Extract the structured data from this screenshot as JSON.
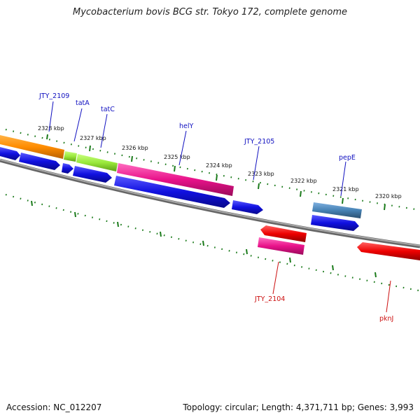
{
  "title": "Mycobacterium bovis BCG str. Tokyo 172, complete genome",
  "footer": {
    "accession": "Accession: NC_012207",
    "summary": "Topology: circular; Length: 4,371,711 bp; Genes: 3,993"
  },
  "colors": {
    "backbone": "#808080",
    "tick": "#1a7a1a",
    "forward_label": "#1010c0",
    "reverse_label": "#cc1010",
    "blue_gene": "#1010e0",
    "orange_gene": "#ff8c00",
    "green_gene": "#99e83a",
    "pink_gene": "#e8128a",
    "steel_gene": "#4682b4",
    "red_gene": "#ee0000"
  },
  "scale_ticks": [
    {
      "label": "2328 kbp"
    },
    {
      "label": "2327 kbp"
    },
    {
      "label": "2326 kbp"
    },
    {
      "label": "2325 kbp"
    },
    {
      "label": "2324 kbp"
    },
    {
      "label": "2323 kbp"
    },
    {
      "label": "2322 kbp"
    },
    {
      "label": "2321 kbp"
    },
    {
      "label": "2320 kbp"
    }
  ],
  "gene_labels": [
    {
      "name": "JTY_2109",
      "strand": "forward"
    },
    {
      "name": "tatA",
      "strand": "forward"
    },
    {
      "name": "tatC",
      "strand": "forward"
    },
    {
      "name": "helY",
      "strand": "forward"
    },
    {
      "name": "JTY_2105",
      "strand": "forward"
    },
    {
      "name": "pepE",
      "strand": "forward"
    },
    {
      "name": "JTY_2104",
      "strand": "reverse"
    },
    {
      "name": "pknJ",
      "strand": "reverse"
    }
  ]
}
